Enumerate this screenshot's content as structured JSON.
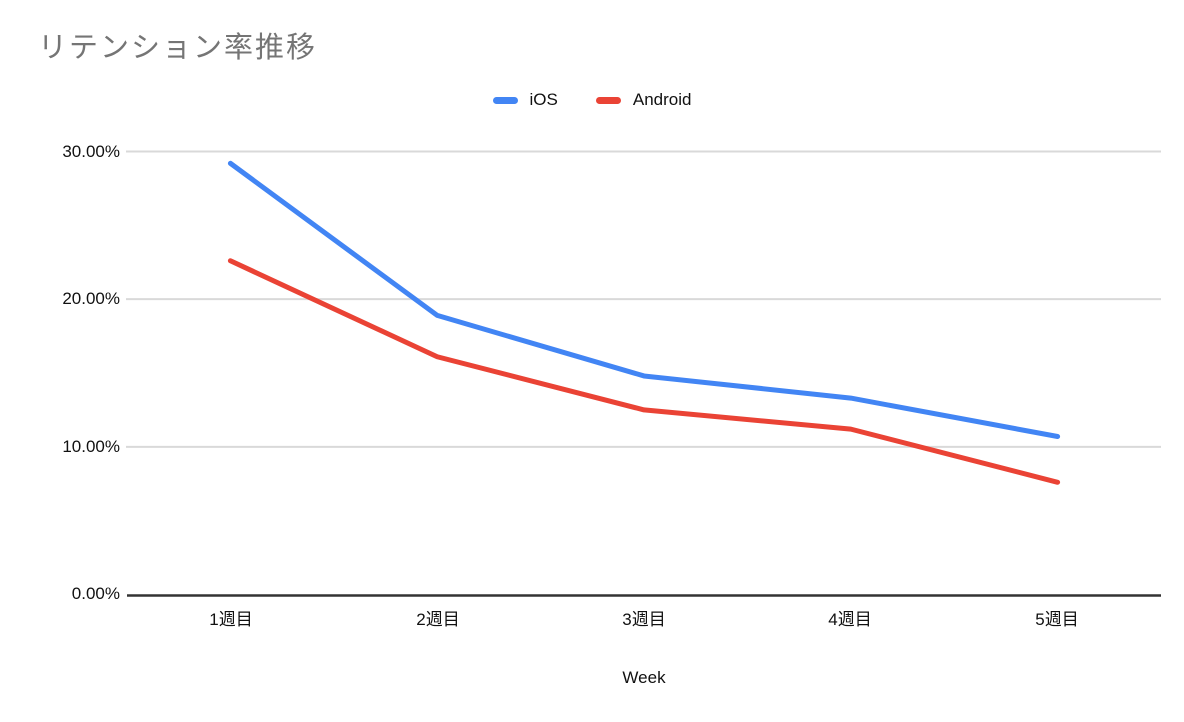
{
  "chart_data": {
    "type": "line",
    "title": "リテンション率推移",
    "xlabel": "Week",
    "ylabel": "",
    "categories": [
      "1週目",
      "2週目",
      "3週目",
      "4週目",
      "5週目"
    ],
    "series": [
      {
        "name": "iOS",
        "color": "#4285f4",
        "values": [
          29.2,
          18.9,
          14.8,
          13.3,
          10.7
        ]
      },
      {
        "name": "Android",
        "color": "#ea4335",
        "values": [
          22.6,
          16.1,
          12.5,
          11.2,
          7.6
        ]
      }
    ],
    "ylim": [
      0,
      30
    ],
    "yticks": [
      0,
      10,
      20,
      30
    ],
    "ytick_labels": [
      "0.00%",
      "10.00%",
      "20.00%",
      "30.00%"
    ],
    "grid": true,
    "legend_position": "top",
    "colors": {
      "title_text": "#757575",
      "axis_text": "#111111",
      "gridline": "#d9d9d9",
      "baseline": "#333333",
      "background": "#ffffff"
    }
  }
}
